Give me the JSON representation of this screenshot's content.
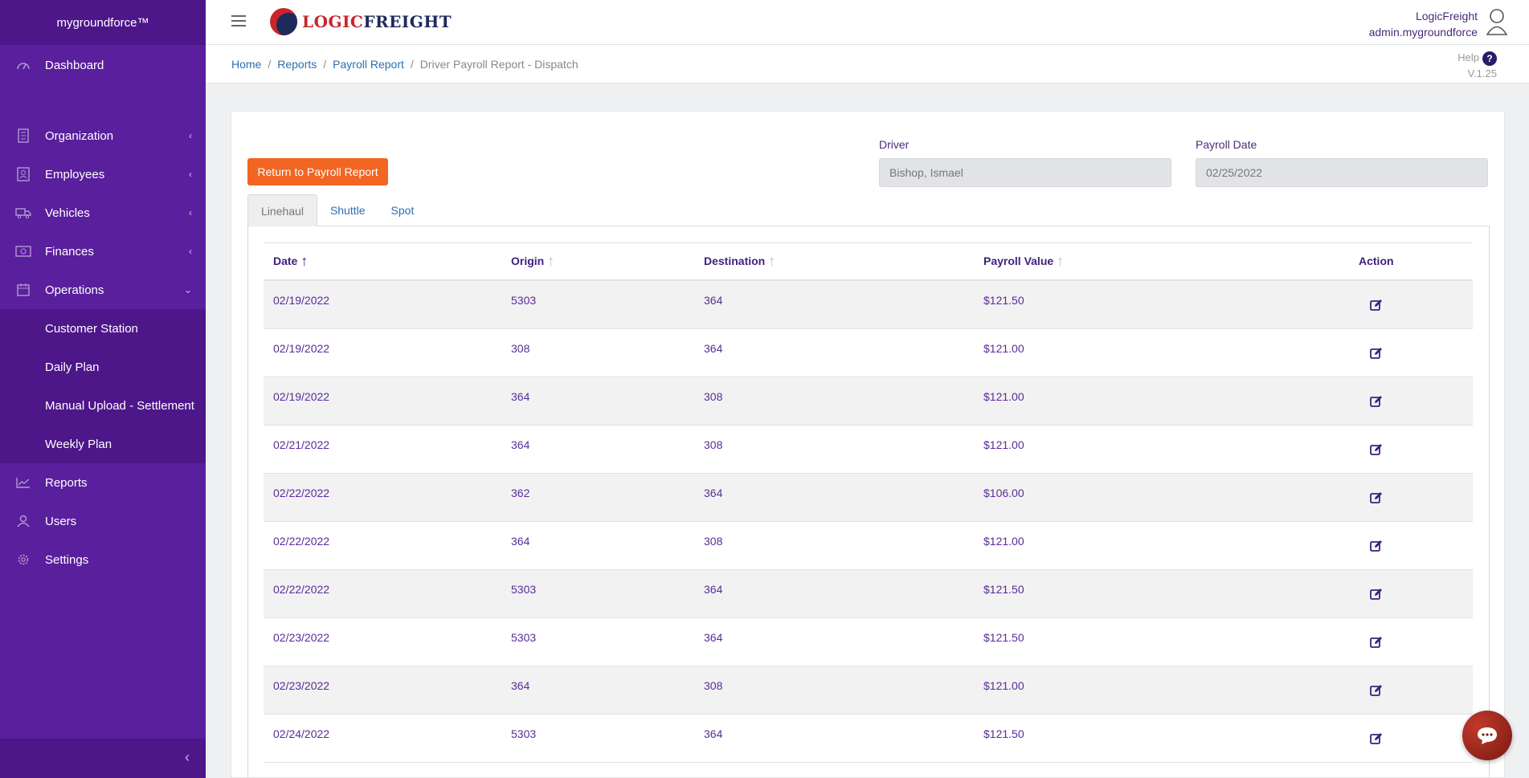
{
  "sidebar": {
    "brand": "mygroundforce™",
    "items": [
      {
        "label": "Dashboard",
        "icon": "dashboard-icon"
      },
      {
        "label": "Organization",
        "icon": "building-icon"
      },
      {
        "label": "Employees",
        "icon": "id-card-icon"
      },
      {
        "label": "Vehicles",
        "icon": "truck-icon"
      },
      {
        "label": "Finances",
        "icon": "money-icon"
      },
      {
        "label": "Operations",
        "icon": "calendar-icon"
      },
      {
        "label": "Reports",
        "icon": "chart-line-icon"
      },
      {
        "label": "Users",
        "icon": "user-icon"
      },
      {
        "label": "Settings",
        "icon": "gear-icon"
      }
    ],
    "operations_sub": [
      "Customer Station",
      "Daily Plan",
      "Manual Upload - Settlement",
      "Weekly Plan"
    ]
  },
  "header": {
    "logo_a": "LOGIC",
    "logo_b": "FREIGHT",
    "company": "LogicFreight",
    "username": "admin.mygroundforce"
  },
  "breadcrumb": {
    "home": "Home",
    "reports": "Reports",
    "payroll_report": "Payroll Report",
    "current": "Driver Payroll Report - Dispatch",
    "sep": "/"
  },
  "help": {
    "label": "Help",
    "version": "V.1.25"
  },
  "form": {
    "return_label": "Return to Payroll Report",
    "driver_label": "Driver",
    "driver_value": "Bishop, Ismael",
    "date_label": "Payroll Date",
    "date_value": "02/25/2022"
  },
  "tabs": [
    "Linehaul",
    "Shuttle",
    "Spot"
  ],
  "table": {
    "headers": {
      "date": "Date",
      "origin": "Origin",
      "destination": "Destination",
      "payroll_value": "Payroll Value",
      "action": "Action"
    },
    "rows": [
      {
        "date": "02/19/2022",
        "origin": "5303",
        "destination": "364",
        "value": "$121.50"
      },
      {
        "date": "02/19/2022",
        "origin": "308",
        "destination": "364",
        "value": "$121.00"
      },
      {
        "date": "02/19/2022",
        "origin": "364",
        "destination": "308",
        "value": "$121.00"
      },
      {
        "date": "02/21/2022",
        "origin": "364",
        "destination": "308",
        "value": "$121.00"
      },
      {
        "date": "02/22/2022",
        "origin": "362",
        "destination": "364",
        "value": "$106.00"
      },
      {
        "date": "02/22/2022",
        "origin": "364",
        "destination": "308",
        "value": "$121.00"
      },
      {
        "date": "02/22/2022",
        "origin": "5303",
        "destination": "364",
        "value": "$121.50"
      },
      {
        "date": "02/23/2022",
        "origin": "5303",
        "destination": "364",
        "value": "$121.50"
      },
      {
        "date": "02/23/2022",
        "origin": "364",
        "destination": "308",
        "value": "$121.00"
      },
      {
        "date": "02/24/2022",
        "origin": "5303",
        "destination": "364",
        "value": "$121.50"
      }
    ]
  },
  "colors": {
    "sidebar": "#5a1f9c",
    "accent": "#f26522",
    "link": "#2a6fb3"
  }
}
